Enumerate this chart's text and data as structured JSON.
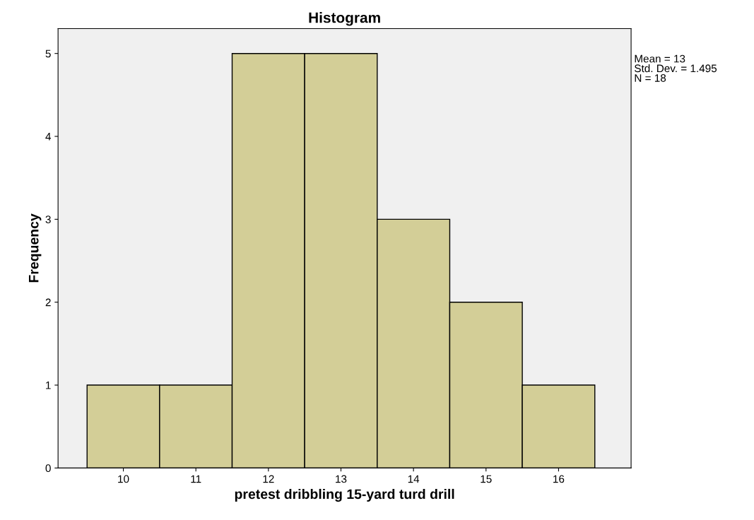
{
  "chart_data": {
    "type": "histogram",
    "title": "Histogram",
    "xlabel": "pretest dribbling 15-yard turd drill",
    "ylabel": "Frequency",
    "bins": [
      9.5,
      10.5,
      11.5,
      12.5,
      13.5,
      14.5,
      15.5,
      16.5
    ],
    "values": [
      1,
      1,
      5,
      5,
      3,
      2,
      1
    ],
    "color": "#d3ce97",
    "xlim": [
      9.1,
      17.0
    ],
    "xticks": [
      10,
      11,
      12,
      13,
      14,
      15,
      16
    ],
    "ylim": [
      0,
      5.3
    ],
    "yticks": [
      0,
      1,
      2,
      3,
      4,
      5
    ],
    "grid": false,
    "annotations": [
      "Mean = 13\nStd. Dev. = 1.495\nN = 18"
    ]
  }
}
